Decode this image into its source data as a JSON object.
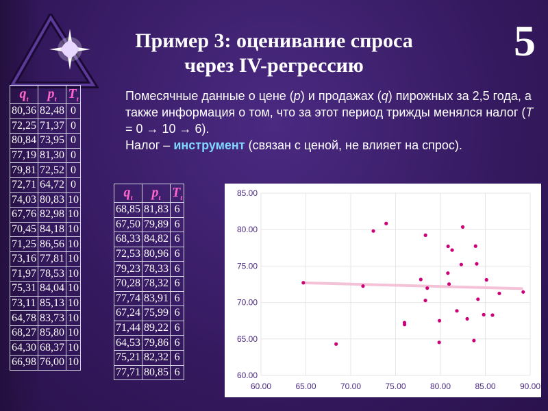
{
  "slide": {
    "number": "5",
    "title_line1": "Пример 3: оценивание спроса",
    "title_line2": "через IV-регрессию"
  },
  "description": {
    "p1_before_p": "Помесячные данные о цене (",
    "p_var": "p",
    "p1_mid": ") и продажах (",
    "q_var": "q",
    "p1_after_q": ") пирожных за 2,5 года, а также информация о том, что за этот период трижды менялся налог (",
    "t_var": "T",
    "p1_end": " = 0 → 10 → 6).",
    "p2_start": "Налог – ",
    "p2_keyword": "инструмент",
    "p2_end": " (связан с ценой, не влияет на спрос)."
  },
  "table_headers": {
    "q": "q",
    "p": "p",
    "T": "T",
    "sub": "t"
  },
  "table1_rows": [
    [
      "80,36",
      "82,48",
      "0"
    ],
    [
      "72,25",
      "71,37",
      "0"
    ],
    [
      "80,84",
      "73,95",
      "0"
    ],
    [
      "77,19",
      "81,30",
      "0"
    ],
    [
      "79,81",
      "72,52",
      "0"
    ],
    [
      "72,71",
      "64,72",
      "0"
    ],
    [
      "74,03",
      "80,83",
      "10"
    ],
    [
      "67,76",
      "82,98",
      "10"
    ],
    [
      "70,45",
      "84,18",
      "10"
    ],
    [
      "71,25",
      "86,56",
      "10"
    ],
    [
      "73,16",
      "77,81",
      "10"
    ],
    [
      "71,97",
      "78,53",
      "10"
    ],
    [
      "75,31",
      "84,04",
      "10"
    ],
    [
      "73,11",
      "85,13",
      "10"
    ],
    [
      "64,78",
      "83,73",
      "10"
    ],
    [
      "68,27",
      "85,80",
      "10"
    ],
    [
      "64,30",
      "68,37",
      "10"
    ],
    [
      "66,98",
      "76,00",
      "10"
    ]
  ],
  "table2_rows": [
    [
      "68,85",
      "81,83",
      "6"
    ],
    [
      "67,50",
      "79,89",
      "6"
    ],
    [
      "68,33",
      "84,82",
      "6"
    ],
    [
      "72,53",
      "80,96",
      "6"
    ],
    [
      "79,23",
      "78,33",
      "6"
    ],
    [
      "70,28",
      "78,32",
      "6"
    ],
    [
      "77,74",
      "83,91",
      "6"
    ],
    [
      "67,24",
      "75,99",
      "6"
    ],
    [
      "71,44",
      "89,22",
      "6"
    ],
    [
      "64,53",
      "79,86",
      "6"
    ],
    [
      "75,21",
      "82,32",
      "6"
    ],
    [
      "77,71",
      "80,85",
      "6"
    ]
  ],
  "chart_data": {
    "type": "scatter",
    "xlim": [
      60,
      90
    ],
    "ylim": [
      60,
      85
    ],
    "x_ticks": [
      "60.00",
      "65.00",
      "70.00",
      "75.00",
      "80.00",
      "85.00",
      "90.00"
    ],
    "y_ticks": [
      "60.00",
      "65.00",
      "70.00",
      "75.00",
      "80.00",
      "85.00"
    ],
    "grid": true,
    "point_color": "#cc0077",
    "trend_color": "#f4c2d6",
    "trend_line": [
      [
        64.7,
        72.7
      ],
      [
        89.2,
        71.9
      ]
    ],
    "points": [
      [
        82.48,
        80.36
      ],
      [
        71.37,
        72.25
      ],
      [
        73.95,
        80.84
      ],
      [
        81.3,
        77.19
      ],
      [
        72.52,
        79.81
      ],
      [
        64.72,
        72.71
      ],
      [
        80.83,
        74.03
      ],
      [
        82.98,
        67.76
      ],
      [
        84.18,
        70.45
      ],
      [
        86.56,
        71.25
      ],
      [
        77.81,
        73.16
      ],
      [
        78.53,
        71.97
      ],
      [
        84.04,
        75.31
      ],
      [
        85.13,
        73.11
      ],
      [
        83.73,
        64.78
      ],
      [
        85.8,
        68.27
      ],
      [
        68.37,
        64.3
      ],
      [
        76.0,
        66.98
      ],
      [
        81.83,
        68.85
      ],
      [
        79.89,
        67.5
      ],
      [
        84.82,
        68.33
      ],
      [
        80.96,
        72.53
      ],
      [
        78.33,
        79.23
      ],
      [
        78.32,
        70.28
      ],
      [
        83.91,
        77.74
      ],
      [
        75.99,
        67.24
      ],
      [
        89.22,
        71.44
      ],
      [
        79.86,
        64.53
      ],
      [
        82.32,
        75.21
      ],
      [
        80.85,
        77.71
      ]
    ]
  }
}
